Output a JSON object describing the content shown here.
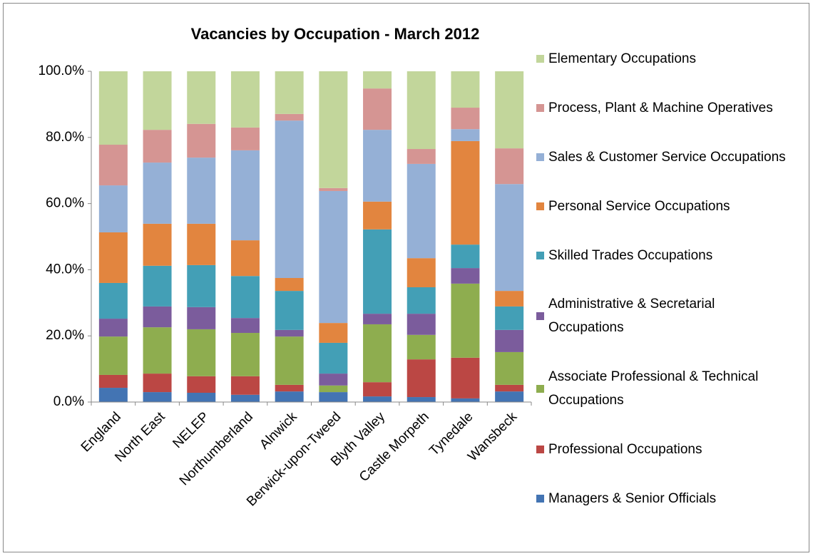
{
  "chart_data": {
    "type": "stacked_bar_percent",
    "title": "Vacancies by Occupation - March 2012",
    "categories": [
      "England",
      "North East",
      "NELEP",
      "Northumberland",
      "Alnwick",
      "Berwick-upon-Tweed",
      "Blyth Valley",
      "Castle Morpeth",
      "Tynedale",
      "Wansbeck"
    ],
    "series": [
      {
        "name": "Managers & Senior Officials",
        "color": "#4374b3",
        "values": [
          4.3,
          3.0,
          2.8,
          2.2,
          3.2,
          3.0,
          1.7,
          1.5,
          1.1,
          3.2
        ]
      },
      {
        "name": "Professional Occupations",
        "color": "#bb4744",
        "values": [
          3.9,
          5.6,
          5.0,
          5.6,
          2.0,
          0.0,
          4.3,
          11.4,
          12.3,
          2.0
        ]
      },
      {
        "name": "Associate Professional & Technical Occupations",
        "color": "#8ead4f",
        "values": [
          11.6,
          14.0,
          14.2,
          13.1,
          14.6,
          2.0,
          17.5,
          7.4,
          22.4,
          9.9
        ]
      },
      {
        "name": "Administrative & Secretarial Occupations",
        "color": "#7b5c9c",
        "values": [
          5.4,
          6.3,
          6.7,
          4.5,
          2.0,
          3.6,
          3.2,
          6.4,
          4.7,
          6.7
        ]
      },
      {
        "name": "Skilled Trades Occupations",
        "color": "#439fb6",
        "values": [
          10.8,
          12.3,
          12.7,
          12.7,
          11.8,
          9.3,
          25.5,
          8.0,
          7.1,
          7.1
        ]
      },
      {
        "name": "Personal Service Occupations",
        "color": "#e2853f",
        "values": [
          15.3,
          12.7,
          12.5,
          10.8,
          3.9,
          6.0,
          8.4,
          8.8,
          31.3,
          4.7
        ]
      },
      {
        "name": "Sales & Customer Service Occupations",
        "color": "#95b0d6",
        "values": [
          14.2,
          18.5,
          20.0,
          27.2,
          47.6,
          39.9,
          21.7,
          28.5,
          3.6,
          32.3
        ]
      },
      {
        "name": "Process, Plant & Machine Operatives",
        "color": "#d59593",
        "values": [
          12.3,
          9.9,
          10.2,
          6.9,
          2.0,
          0.9,
          12.5,
          4.5,
          6.5,
          10.8
        ]
      },
      {
        "name": "Elementary Occupations",
        "color": "#c2d69b",
        "values": [
          22.2,
          17.7,
          15.9,
          17.0,
          12.9,
          35.3,
          5.2,
          23.5,
          11.0,
          23.3
        ]
      }
    ],
    "ylim": [
      0,
      100
    ],
    "yticks": [
      {
        "value": 0,
        "label": "0.0%"
      },
      {
        "value": 20,
        "label": "20.0%"
      },
      {
        "value": 40,
        "label": "40.0%"
      },
      {
        "value": 60,
        "label": "60.0%"
      },
      {
        "value": 80,
        "label": "80.0%"
      },
      {
        "value": 100,
        "label": "100.0%"
      }
    ],
    "legend": "right"
  }
}
